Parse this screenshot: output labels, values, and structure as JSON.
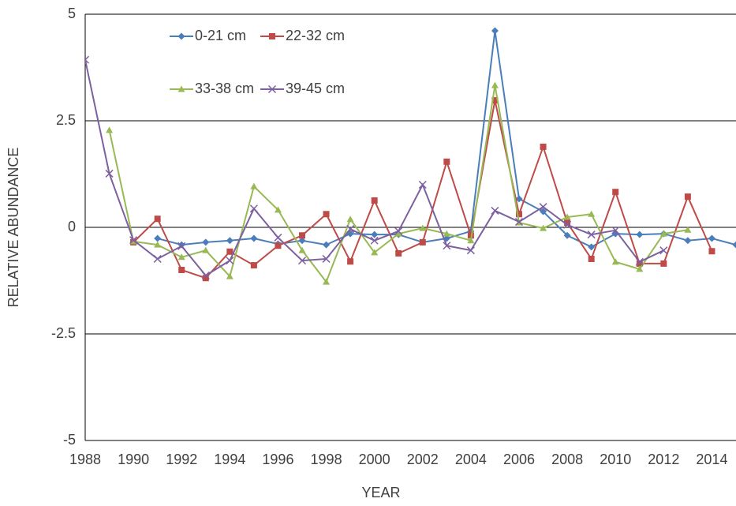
{
  "chart_data": {
    "type": "line",
    "x_label": "YEAR",
    "y_label": "RELATIVE ABUNDANCE",
    "x": [
      1988,
      1989,
      1990,
      1991,
      1992,
      1993,
      1994,
      1995,
      1996,
      1997,
      1998,
      1999,
      2000,
      2001,
      2002,
      2003,
      2004,
      2005,
      2006,
      2007,
      2008,
      2009,
      2010,
      2011,
      2012,
      2013,
      2014,
      2015
    ],
    "xlim": [
      1988,
      2015
    ],
    "xticks": [
      1988,
      1990,
      1992,
      1994,
      1996,
      1998,
      2000,
      2002,
      2004,
      2006,
      2008,
      2010,
      2012,
      2014
    ],
    "ylim": [
      -5,
      5
    ],
    "yticks": [
      -5,
      -2.5,
      0,
      2.5,
      5
    ],
    "grid": true,
    "legend_position": "top-left",
    "series": [
      {
        "name": "0-21 cm",
        "color": "#4a7ebb",
        "marker": "diamond",
        "values": [
          null,
          null,
          null,
          -0.26,
          -0.41,
          -0.35,
          -0.31,
          -0.26,
          -0.39,
          -0.31,
          -0.41,
          -0.15,
          -0.17,
          -0.17,
          -0.35,
          -0.26,
          -0.09,
          4.61,
          0.67,
          0.37,
          -0.19,
          -0.46,
          -0.15,
          -0.17,
          -0.15,
          -0.31,
          -0.26,
          -0.41
        ]
      },
      {
        "name": "22-32 cm",
        "color": "#be4b48",
        "marker": "square",
        "values": [
          null,
          null,
          -0.35,
          0.2,
          -1.0,
          -1.19,
          -0.57,
          -0.89,
          -0.43,
          -0.19,
          0.31,
          -0.8,
          0.63,
          -0.61,
          -0.35,
          1.54,
          -0.19,
          2.98,
          0.31,
          1.89,
          0.11,
          -0.74,
          0.83,
          -0.85,
          -0.85,
          0.72,
          -0.56,
          null
        ]
      },
      {
        "name": "33-38 cm",
        "color": "#98b954",
        "marker": "triangle",
        "values": [
          null,
          2.28,
          -0.33,
          -0.41,
          -0.7,
          -0.54,
          -1.15,
          0.96,
          0.41,
          -0.54,
          -1.28,
          0.19,
          -0.59,
          -0.15,
          -0.02,
          -0.15,
          -0.31,
          3.33,
          0.11,
          -0.02,
          0.24,
          0.31,
          -0.81,
          -0.98,
          -0.15,
          -0.06,
          null,
          null
        ]
      },
      {
        "name": "39-45 cm",
        "color": "#7d60a0",
        "marker": "x",
        "values": [
          3.93,
          1.26,
          -0.3,
          -0.74,
          -0.44,
          -1.13,
          -0.78,
          0.44,
          -0.24,
          -0.78,
          -0.74,
          -0.04,
          -0.31,
          -0.09,
          1.0,
          -0.43,
          -0.54,
          0.39,
          0.13,
          0.48,
          0.06,
          -0.17,
          -0.07,
          -0.81,
          -0.54,
          null,
          null,
          null
        ]
      }
    ]
  }
}
